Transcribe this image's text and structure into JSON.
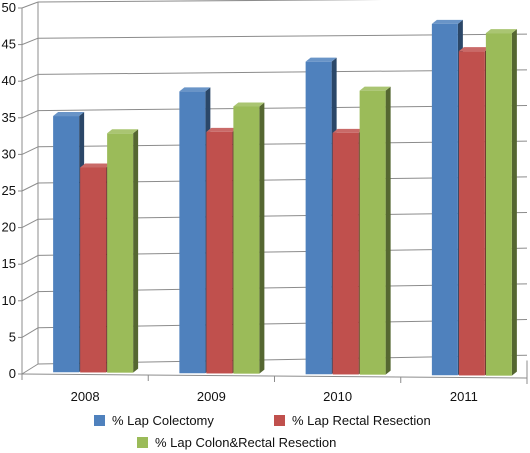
{
  "chart_data": {
    "type": "bar",
    "title": "",
    "xlabel": "",
    "ylabel": "",
    "categories": [
      "2008",
      "2009",
      "2010",
      "2011"
    ],
    "series": [
      {
        "name": "% Lap Colectomy",
        "values": [
          35,
          38.5,
          42.7,
          48
        ],
        "color": "#4F81BD"
      },
      {
        "name": "% Lap Rectal Resection",
        "values": [
          28,
          33,
          33,
          44.3
        ],
        "color": "#C0504D"
      },
      {
        "name": "% Lap Colon&Rectal Resection",
        "values": [
          32.7,
          36.5,
          38.8,
          46.8
        ],
        "color": "#9BBB59"
      }
    ],
    "ylim": [
      0,
      50
    ],
    "yticks": [
      "0",
      "5",
      "10",
      "15",
      "20",
      "25",
      "30",
      "35",
      "40",
      "45",
      "50"
    ],
    "grid": true,
    "legend": "bottom",
    "three_d": true
  }
}
